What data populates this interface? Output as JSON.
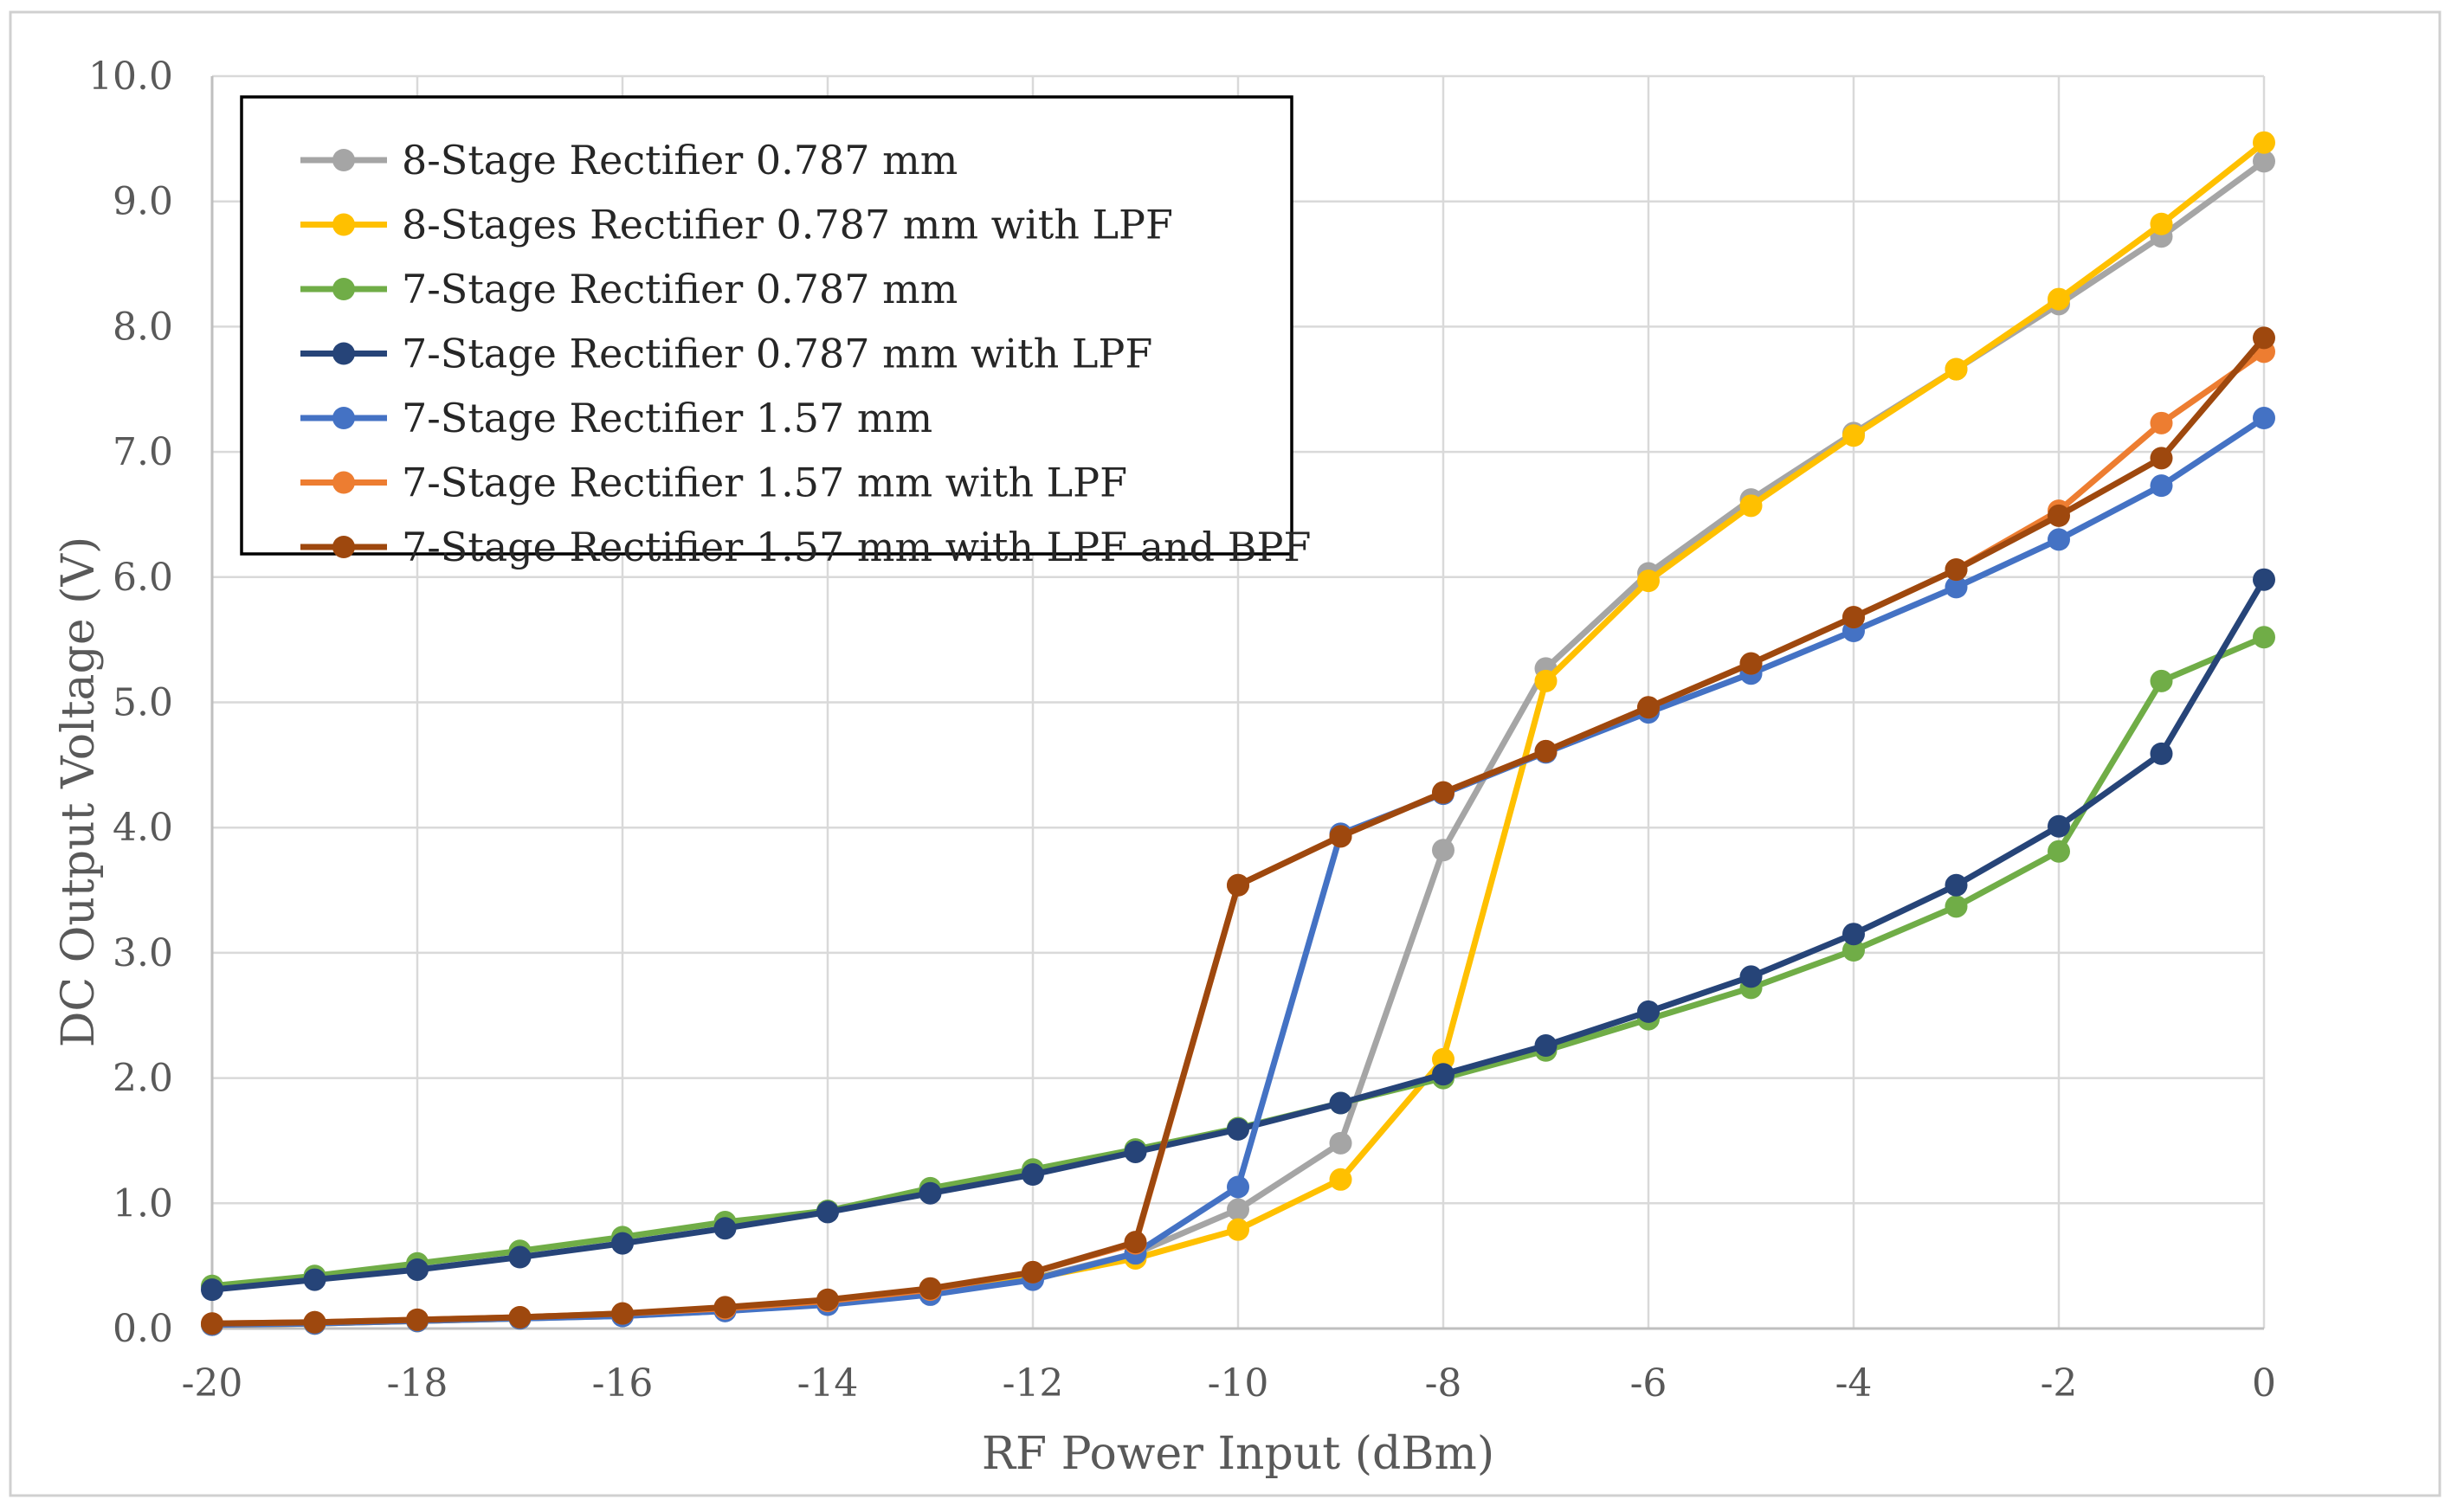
{
  "chart_data": {
    "type": "line",
    "title": "",
    "xlabel": "RF Power Input (dBm)",
    "ylabel": "DC Output Voltage (V)",
    "xlim": [
      -20,
      0
    ],
    "ylim": [
      0,
      10
    ],
    "grid": true,
    "legend_position": "top-left",
    "x": [
      -20,
      -19,
      -18,
      -17,
      -16,
      -15,
      -14,
      -13,
      -12,
      -11,
      -10,
      -9,
      -8,
      -7,
      -6,
      -5,
      -4,
      -3,
      -2,
      -1,
      0
    ],
    "x_ticks": [
      -20,
      -18,
      -16,
      -14,
      -12,
      -10,
      -8,
      -6,
      -4,
      -2,
      0
    ],
    "x_tick_labels": [
      "-20",
      "-18",
      "-16",
      "-14",
      "-12",
      "-10",
      "-8",
      "-6",
      "-4",
      "-2",
      "0"
    ],
    "y_ticks": [
      0,
      1,
      2,
      3,
      4,
      5,
      6,
      7,
      8,
      9,
      10
    ],
    "y_tick_labels": [
      "0.0",
      "1.0",
      "2.0",
      "3.0",
      "4.0",
      "5.0",
      "6.0",
      "7.0",
      "8.0",
      "9.0",
      "10.0"
    ],
    "series": [
      {
        "name": "8-Stage Rectifier 0.787 mm",
        "color": "#a5a5a5",
        "values": [
          0.03,
          0.04,
          0.06,
          0.08,
          0.1,
          0.14,
          0.2,
          0.28,
          0.4,
          0.6,
          0.95,
          1.48,
          3.82,
          5.27,
          6.03,
          6.62,
          7.15,
          7.66,
          8.18,
          8.72,
          9.32
        ]
      },
      {
        "name": "8-Stages Rectifier 0.787 mm with LPF",
        "color": "#ffc000",
        "values": [
          0.03,
          0.04,
          0.06,
          0.08,
          0.11,
          0.15,
          0.21,
          0.29,
          0.4,
          0.56,
          0.79,
          1.19,
          2.15,
          5.17,
          5.97,
          6.57,
          7.13,
          7.66,
          8.22,
          8.82,
          9.47
        ]
      },
      {
        "name": "7-Stage Rectifier 0.787 mm",
        "color": "#70ad47",
        "values": [
          0.34,
          0.42,
          0.52,
          0.62,
          0.73,
          0.85,
          0.94,
          1.12,
          1.27,
          1.43,
          1.6,
          1.8,
          2.0,
          2.22,
          2.47,
          2.72,
          3.02,
          3.37,
          3.81,
          5.17,
          5.52
        ]
      },
      {
        "name": "7-Stage Rectifier 0.787 mm with LPF",
        "color": "#264478",
        "values": [
          0.31,
          0.39,
          0.47,
          0.57,
          0.68,
          0.8,
          0.93,
          1.08,
          1.23,
          1.41,
          1.59,
          1.8,
          2.03,
          2.26,
          2.53,
          2.81,
          3.15,
          3.54,
          4.01,
          4.59,
          5.98
        ]
      },
      {
        "name": "7-Stage Rectifier 1.57 mm",
        "color": "#4472c4",
        "values": [
          0.03,
          0.04,
          0.06,
          0.08,
          0.1,
          0.14,
          0.19,
          0.27,
          0.39,
          0.6,
          1.13,
          3.95,
          4.27,
          4.6,
          4.92,
          5.23,
          5.57,
          5.92,
          6.3,
          6.73,
          7.27
        ]
      },
      {
        "name": "7-Stage Rectifier 1.57 mm with LPF",
        "color": "#ed7d31",
        "values": [
          0.04,
          0.05,
          0.07,
          0.09,
          0.12,
          0.16,
          0.22,
          0.31,
          0.45,
          0.68,
          3.54,
          3.93,
          4.28,
          4.61,
          4.96,
          5.31,
          5.68,
          6.06,
          6.53,
          7.23,
          7.8
        ]
      },
      {
        "name": "7-Stage Rectifier 1.57 mm with LPF and BPF",
        "color": "#9e480e",
        "values": [
          0.04,
          0.05,
          0.07,
          0.09,
          0.12,
          0.17,
          0.23,
          0.32,
          0.45,
          0.69,
          3.54,
          3.93,
          4.28,
          4.61,
          4.96,
          5.31,
          5.68,
          6.06,
          6.49,
          6.95,
          7.91
        ]
      }
    ]
  }
}
